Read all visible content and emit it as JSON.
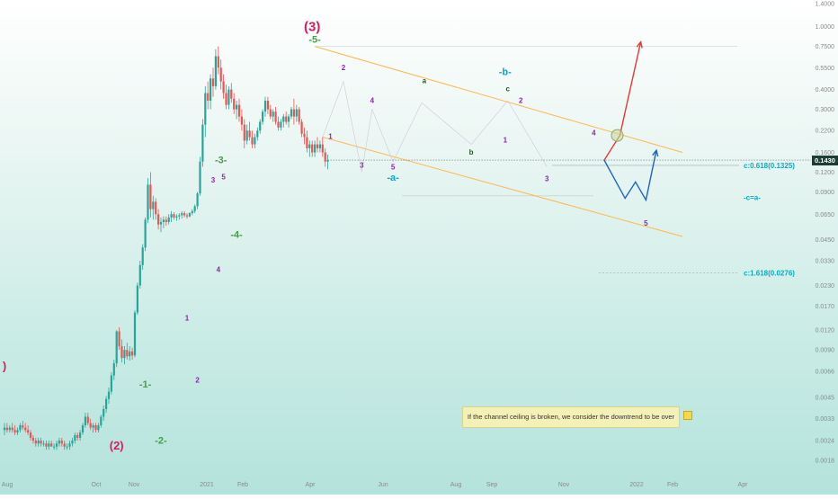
{
  "chart_data": {
    "type": "candlestick",
    "yscale": "log",
    "ylim": [
      0.0018,
      1.4
    ],
    "y_tick_labels": [
      "1.4000",
      "1.0000",
      "0.7500",
      "0.5500",
      "0.4000",
      "0.3000",
      "0.2200",
      "0.1600",
      "0.1200",
      "0.0900",
      "0.0650",
      "0.0450",
      "0.0330",
      "0.0230",
      "0.0170",
      "0.0120",
      "0.0090",
      "0.0066",
      "0.0045",
      "0.0033",
      "0.0024",
      "0.0018"
    ],
    "x_tick_labels": [
      "Aug",
      "Oct",
      "Nov",
      "2021",
      "Feb",
      "Apr",
      "Jun",
      "Aug",
      "Sep",
      "Nov",
      "2022",
      "Feb",
      "Apr"
    ],
    "current_price": "0.1430",
    "current_price_value": 0.143,
    "colors": {
      "up": "#26a69a",
      "down": "#ef5350",
      "wave_major": "#d81b60",
      "wave_green": "#43a047",
      "wave_purple": "#8e24aa",
      "wave_teal": "#00acc1",
      "channel": "#ffb74d",
      "projection_up": "#e53935",
      "projection_down": "#1e63c8",
      "price_tag": "#1e3c34"
    },
    "series": [
      {
        "values": [
          [
            0.0028,
            0.0031,
            0.0026,
            0.0029
          ],
          [
            0.0029,
            0.0031,
            0.0027,
            0.0028
          ],
          [
            0.0028,
            0.003,
            0.0027,
            0.0029
          ],
          [
            0.0029,
            0.0031,
            0.0027,
            0.0028
          ],
          [
            0.0028,
            0.003,
            0.0026,
            0.0027
          ],
          [
            0.0027,
            0.0029,
            0.0026,
            0.0028
          ],
          [
            0.0028,
            0.0031,
            0.0027,
            0.003
          ],
          [
            0.003,
            0.0032,
            0.0028,
            0.0029
          ],
          [
            0.0029,
            0.0031,
            0.0027,
            0.0028
          ],
          [
            0.0028,
            0.003,
            0.0026,
            0.0027
          ],
          [
            0.0027,
            0.0028,
            0.0024,
            0.0025
          ],
          [
            0.0025,
            0.0026,
            0.0023,
            0.0024
          ],
          [
            0.0024,
            0.0025,
            0.0022,
            0.0023
          ],
          [
            0.0023,
            0.0025,
            0.0022,
            0.0024
          ],
          [
            0.0024,
            0.0025,
            0.0022,
            0.0023
          ],
          [
            0.0023,
            0.0024,
            0.0022,
            0.0023
          ],
          [
            0.0023,
            0.0024,
            0.0021,
            0.0022
          ],
          [
            0.0022,
            0.0024,
            0.0021,
            0.0023
          ],
          [
            0.0023,
            0.0024,
            0.0022,
            0.0022
          ],
          [
            0.0022,
            0.0023,
            0.0021,
            0.0022
          ],
          [
            0.0022,
            0.0024,
            0.0021,
            0.0023
          ],
          [
            0.0023,
            0.0025,
            0.0022,
            0.0024
          ],
          [
            0.0024,
            0.0025,
            0.0022,
            0.0023
          ],
          [
            0.0023,
            0.0024,
            0.0021,
            0.0022
          ],
          [
            0.0022,
            0.0023,
            0.0021,
            0.0022
          ],
          [
            0.0022,
            0.0024,
            0.0021,
            0.0023
          ],
          [
            0.0023,
            0.0025,
            0.0022,
            0.0024
          ],
          [
            0.0024,
            0.0027,
            0.0023,
            0.0026
          ],
          [
            0.0026,
            0.0027,
            0.0024,
            0.0025
          ],
          [
            0.0025,
            0.0028,
            0.0024,
            0.0027
          ],
          [
            0.0027,
            0.0031,
            0.0026,
            0.003
          ],
          [
            0.003,
            0.0036,
            0.0029,
            0.0034
          ],
          [
            0.0034,
            0.0036,
            0.003,
            0.0031
          ],
          [
            0.0031,
            0.0033,
            0.0028,
            0.0029
          ],
          [
            0.0029,
            0.0031,
            0.0027,
            0.003
          ],
          [
            0.003,
            0.0031,
            0.0027,
            0.0028
          ],
          [
            0.0028,
            0.0031,
            0.0027,
            0.003
          ],
          [
            0.003,
            0.0035,
            0.0029,
            0.0034
          ],
          [
            0.0034,
            0.004,
            0.0032,
            0.0038
          ],
          [
            0.0038,
            0.0046,
            0.0036,
            0.0044
          ],
          [
            0.0044,
            0.0052,
            0.0041,
            0.0049
          ],
          [
            0.0049,
            0.0065,
            0.0047,
            0.0062
          ],
          [
            0.0062,
            0.0078,
            0.0058,
            0.0074
          ],
          [
            0.0074,
            0.012,
            0.007,
            0.0118
          ],
          [
            0.0118,
            0.0125,
            0.009,
            0.0095
          ],
          [
            0.0095,
            0.0105,
            0.0075,
            0.008
          ],
          [
            0.008,
            0.0095,
            0.0073,
            0.009
          ],
          [
            0.009,
            0.01,
            0.0078,
            0.0082
          ],
          [
            0.0082,
            0.0095,
            0.0077,
            0.0088
          ],
          [
            0.0088,
            0.0093,
            0.0078,
            0.0083
          ],
          [
            0.0083,
            0.016,
            0.0081,
            0.0155
          ],
          [
            0.0155,
            0.024,
            0.015,
            0.023
          ],
          [
            0.023,
            0.033,
            0.022,
            0.031
          ],
          [
            0.031,
            0.042,
            0.029,
            0.04
          ],
          [
            0.04,
            0.062,
            0.038,
            0.06
          ],
          [
            0.06,
            0.11,
            0.057,
            0.1
          ],
          [
            0.1,
            0.12,
            0.062,
            0.07
          ],
          [
            0.07,
            0.085,
            0.06,
            0.078
          ],
          [
            0.078,
            0.082,
            0.06,
            0.065
          ],
          [
            0.065,
            0.07,
            0.052,
            0.056
          ],
          [
            0.056,
            0.062,
            0.05,
            0.058
          ],
          [
            0.058,
            0.063,
            0.053,
            0.06
          ],
          [
            0.06,
            0.063,
            0.055,
            0.058
          ],
          [
            0.058,
            0.065,
            0.056,
            0.062
          ],
          [
            0.062,
            0.068,
            0.058,
            0.065
          ],
          [
            0.065,
            0.067,
            0.06,
            0.062
          ],
          [
            0.062,
            0.065,
            0.059,
            0.063
          ],
          [
            0.063,
            0.066,
            0.06,
            0.064
          ],
          [
            0.064,
            0.068,
            0.061,
            0.066
          ],
          [
            0.066,
            0.068,
            0.062,
            0.064
          ],
          [
            0.064,
            0.066,
            0.061,
            0.063
          ],
          [
            0.063,
            0.067,
            0.062,
            0.066
          ],
          [
            0.066,
            0.07,
            0.064,
            0.068
          ],
          [
            0.068,
            0.075,
            0.066,
            0.073
          ],
          [
            0.073,
            0.09,
            0.07,
            0.088
          ],
          [
            0.088,
            0.15,
            0.085,
            0.14
          ],
          [
            0.14,
            0.26,
            0.13,
            0.24
          ],
          [
            0.24,
            0.42,
            0.2,
            0.38
          ],
          [
            0.38,
            0.45,
            0.3,
            0.34
          ],
          [
            0.34,
            0.5,
            0.3,
            0.47
          ],
          [
            0.47,
            0.55,
            0.36,
            0.42
          ],
          [
            0.42,
            0.72,
            0.4,
            0.65
          ],
          [
            0.65,
            0.75,
            0.5,
            0.55
          ],
          [
            0.55,
            0.62,
            0.4,
            0.45
          ],
          [
            0.45,
            0.5,
            0.35,
            0.38
          ],
          [
            0.38,
            0.43,
            0.3,
            0.32
          ],
          [
            0.32,
            0.42,
            0.3,
            0.4
          ],
          [
            0.4,
            0.44,
            0.33,
            0.35
          ],
          [
            0.35,
            0.38,
            0.28,
            0.3
          ],
          [
            0.3,
            0.34,
            0.26,
            0.32
          ],
          [
            0.32,
            0.35,
            0.25,
            0.27
          ],
          [
            0.27,
            0.3,
            0.22,
            0.24
          ],
          [
            0.24,
            0.26,
            0.17,
            0.19
          ],
          [
            0.19,
            0.24,
            0.18,
            0.22
          ],
          [
            0.22,
            0.25,
            0.19,
            0.2
          ],
          [
            0.2,
            0.22,
            0.17,
            0.18
          ],
          [
            0.18,
            0.21,
            0.17,
            0.2
          ],
          [
            0.2,
            0.23,
            0.19,
            0.22
          ],
          [
            0.22,
            0.26,
            0.21,
            0.25
          ],
          [
            0.25,
            0.3,
            0.24,
            0.29
          ],
          [
            0.29,
            0.36,
            0.27,
            0.34
          ],
          [
            0.34,
            0.36,
            0.28,
            0.3
          ],
          [
            0.3,
            0.32,
            0.26,
            0.27
          ],
          [
            0.27,
            0.3,
            0.25,
            0.29
          ],
          [
            0.29,
            0.31,
            0.24,
            0.25
          ],
          [
            0.25,
            0.27,
            0.22,
            0.23
          ],
          [
            0.23,
            0.26,
            0.22,
            0.25
          ],
          [
            0.25,
            0.28,
            0.23,
            0.27
          ],
          [
            0.27,
            0.29,
            0.24,
            0.25
          ],
          [
            0.25,
            0.28,
            0.23,
            0.27
          ],
          [
            0.27,
            0.31,
            0.26,
            0.3
          ],
          [
            0.3,
            0.35,
            0.24,
            0.27
          ],
          [
            0.27,
            0.32,
            0.25,
            0.3
          ],
          [
            0.3,
            0.31,
            0.24,
            0.25
          ],
          [
            0.25,
            0.26,
            0.2,
            0.21
          ],
          [
            0.21,
            0.23,
            0.18,
            0.2
          ],
          [
            0.2,
            0.22,
            0.16,
            0.17
          ],
          [
            0.17,
            0.19,
            0.15,
            0.18
          ],
          [
            0.18,
            0.19,
            0.15,
            0.16
          ],
          [
            0.16,
            0.19,
            0.15,
            0.18
          ],
          [
            0.18,
            0.2,
            0.16,
            0.17
          ],
          [
            0.17,
            0.19,
            0.16,
            0.18
          ],
          [
            0.18,
            0.2,
            0.15,
            0.16
          ],
          [
            0.16,
            0.17,
            0.13,
            0.14
          ],
          [
            0.14,
            0.155,
            0.125,
            0.143
          ]
        ]
      }
    ],
    "wave_labels": [
      {
        "text": "(3)",
        "x": 118,
        "y": 0.94,
        "color": "wave_major",
        "size": 15
      },
      {
        "text": "(2)",
        "x": 43,
        "y": 0.0021,
        "color": "wave_major",
        "size": 13
      },
      {
        "text": ")",
        "x": 0,
        "y": 0.0067,
        "color": "wave_major",
        "size": 13
      },
      {
        "text": "-5-",
        "x": 119,
        "y": 0.79,
        "color": "wave_green",
        "size": 11
      },
      {
        "text": "-3-",
        "x": 83,
        "y": 0.137,
        "color": "wave_green",
        "size": 11
      },
      {
        "text": "-4-",
        "x": 89,
        "y": 0.046,
        "color": "wave_green",
        "size": 11
      },
      {
        "text": "-1-",
        "x": 54,
        "y": 0.0052,
        "color": "wave_green",
        "size": 11
      },
      {
        "text": "-2-",
        "x": 60,
        "y": 0.0023,
        "color": "wave_green",
        "size": 11
      },
      {
        "text": "3",
        "x": 80,
        "y": 0.103,
        "color": "wave_purple",
        "size": 8
      },
      {
        "text": "5",
        "x": 84,
        "y": 0.108,
        "color": "wave_purple",
        "size": 8
      },
      {
        "text": "4",
        "x": 82,
        "y": 0.028,
        "color": "wave_purple",
        "size": 8
      },
      {
        "text": "1",
        "x": 70,
        "y": 0.0138,
        "color": "wave_purple",
        "size": 8
      },
      {
        "text": "2",
        "x": 74,
        "y": 0.0056,
        "color": "wave_purple",
        "size": 8
      },
      {
        "text": "1",
        "x": 125,
        "y": 0.195,
        "color": "wave_purple",
        "size": 8
      },
      {
        "text": "2",
        "x": 130,
        "y": 0.53,
        "color": "wave_purple",
        "size": 8
      },
      {
        "text": "3",
        "x": 137,
        "y": 0.128,
        "color": "wave_purple",
        "size": 8
      },
      {
        "text": "4",
        "x": 141,
        "y": 0.33,
        "color": "wave_purple",
        "size": 8
      },
      {
        "text": "5",
        "x": 149,
        "y": 0.125,
        "color": "wave_purple",
        "size": 8
      },
      {
        "text": "-a-",
        "x": 149,
        "y": 0.106,
        "color": "wave_teal",
        "size": 11
      },
      {
        "text": "a",
        "x": 161,
        "y": 0.44,
        "color": "#1b5e20",
        "size": 8
      },
      {
        "text": "b",
        "x": 179,
        "y": 0.155,
        "color": "#1b5e20",
        "size": 8
      },
      {
        "text": "-b-",
        "x": 192,
        "y": 0.495,
        "color": "wave_teal",
        "size": 11
      },
      {
        "text": "c",
        "x": 193,
        "y": 0.39,
        "color": "#1b5e20",
        "size": 8
      },
      {
        "text": "2",
        "x": 198,
        "y": 0.33,
        "color": "wave_purple",
        "size": 8
      },
      {
        "text": "1",
        "x": 192,
        "y": 0.185,
        "color": "wave_purple",
        "size": 8
      },
      {
        "text": "3",
        "x": 208,
        "y": 0.105,
        "color": "wave_purple",
        "size": 8
      },
      {
        "text": "4",
        "x": 226,
        "y": 0.205,
        "color": "wave_purple",
        "size": 8
      },
      {
        "text": "5",
        "x": 246,
        "y": 0.055,
        "color": "wave_purple",
        "size": 8
      }
    ],
    "channel_upper": [
      [
        119,
        0.75
      ],
      [
        260,
        0.16
      ]
    ],
    "channel_lower": [
      [
        122,
        0.2
      ],
      [
        260,
        0.047
      ]
    ],
    "fib_levels": [
      {
        "label": "c:0.618(0.1325)",
        "value": 0.1325,
        "from": 210,
        "to": 257
      },
      {
        "label": "-c=a-",
        "value": 0.083,
        "from": 257,
        "to": 257
      },
      {
        "label": "c:1.618(0.0276)",
        "value": 0.0276,
        "from": 228,
        "to": 257
      }
    ],
    "projection_up": [
      [
        230,
        0.143
      ],
      [
        236,
        0.205
      ],
      [
        244,
        0.8
      ]
    ],
    "projection_down": [
      [
        230,
        0.143
      ],
      [
        238,
        0.082
      ],
      [
        242,
        0.104
      ],
      [
        246,
        0.08
      ],
      [
        250,
        0.165
      ]
    ],
    "circle_marker": [
      235,
      0.205
    ],
    "annotation": "If the channel ceiling is broken, we consider the downtrend to be over"
  }
}
